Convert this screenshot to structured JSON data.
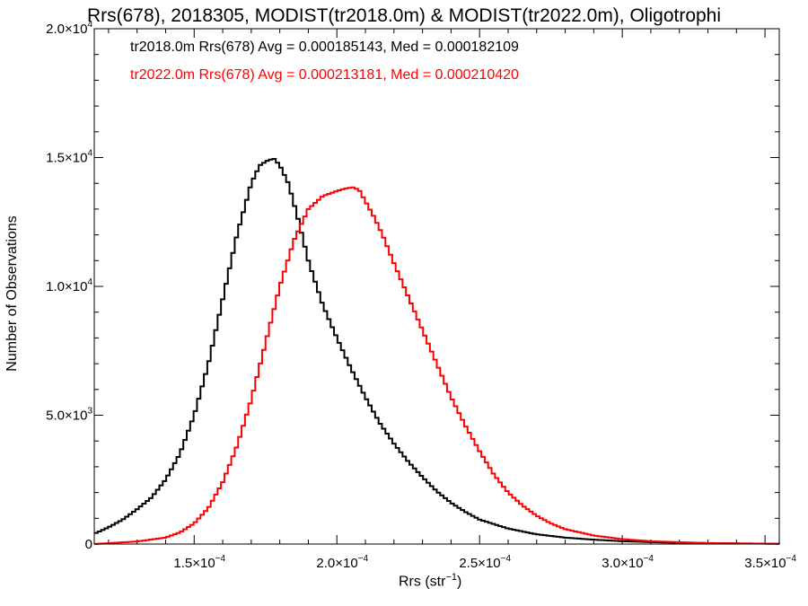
{
  "chart_data": {
    "type": "line",
    "title": "Rrs(678), 2018305, MODIST(tr2018.0m) & MODIST(tr2022.0m), Oligotrophi",
    "xlabel_base": "Rrs (str",
    "xlabel_sup": "−1",
    "xlabel_close": ")",
    "ylabel": "Number of Observations",
    "xlim": [
      0.000115,
      0.000355
    ],
    "ylim": [
      0,
      20000
    ],
    "x_ticks": [
      {
        "value": 0.00015,
        "mant": "1.5×10",
        "exp": "−4"
      },
      {
        "value": 0.0002,
        "mant": "2.0×10",
        "exp": "−4"
      },
      {
        "value": 0.00025,
        "mant": "2.5×10",
        "exp": "−4"
      },
      {
        "value": 0.0003,
        "mant": "3.0×10",
        "exp": "−4"
      },
      {
        "value": 0.00035,
        "mant": "3.5×10",
        "exp": "−4"
      }
    ],
    "y_ticks": [
      {
        "value": 0,
        "mant": "0",
        "exp": ""
      },
      {
        "value": 5000,
        "mant": "5.0×10",
        "exp": "3"
      },
      {
        "value": 10000,
        "mant": "1.0×10",
        "exp": "4"
      },
      {
        "value": 15000,
        "mant": "1.5×10",
        "exp": "4"
      },
      {
        "value": 20000,
        "mant": "2.0×10",
        "exp": "4"
      }
    ],
    "legend": [
      {
        "text": "tr2018.0m Rrs(678) Avg = 0.000185143, Med = 0.000182109",
        "color": "#000000"
      },
      {
        "text": "tr2022.0m Rrs(678) Avg = 0.000213181, Med = 0.000210420",
        "color": "#ff0000"
      }
    ],
    "series": [
      {
        "color": "#000000",
        "x": [
          0.000115,
          0.00012,
          0.000125,
          0.00013,
          0.000135,
          0.00014,
          0.000145,
          0.00015,
          0.000155,
          0.00016,
          0.000165,
          0.00017,
          0.000173,
          0.000176,
          0.000178,
          0.00018,
          0.000183,
          0.000186,
          0.00019,
          0.000195,
          0.0002,
          0.000205,
          0.00021,
          0.000215,
          0.00022,
          0.000225,
          0.00023,
          0.000235,
          0.00024,
          0.000245,
          0.00025,
          0.00026,
          0.00027,
          0.00028,
          0.00029,
          0.0003,
          0.00031,
          0.00032,
          0.00033,
          0.00034,
          0.00035,
          0.000355
        ],
        "values": [
          400,
          650,
          950,
          1350,
          1800,
          2500,
          3500,
          5000,
          7000,
          9500,
          12000,
          14000,
          14700,
          14900,
          14950,
          14700,
          14000,
          12800,
          11000,
          9300,
          8000,
          6800,
          5700,
          4700,
          3900,
          3200,
          2600,
          2050,
          1600,
          1250,
          950,
          600,
          380,
          250,
          170,
          110,
          75,
          50,
          35,
          25,
          15,
          10
        ]
      },
      {
        "color": "#ff0000",
        "x": [
          0.000115,
          0.00013,
          0.00014,
          0.000145,
          0.00015,
          0.000155,
          0.00016,
          0.000165,
          0.00017,
          0.000175,
          0.00018,
          0.000185,
          0.00019,
          0.000195,
          0.0002,
          0.000203,
          0.000206,
          0.000208,
          0.00021,
          0.000213,
          0.000216,
          0.00022,
          0.000225,
          0.00023,
          0.000235,
          0.00024,
          0.000245,
          0.00025,
          0.000255,
          0.00026,
          0.000265,
          0.00027,
          0.000275,
          0.00028,
          0.00029,
          0.0003,
          0.00031,
          0.00032,
          0.00033,
          0.00034,
          0.000355
        ],
        "values": [
          0,
          100,
          250,
          450,
          800,
          1400,
          2400,
          3800,
          5600,
          7800,
          10000,
          11800,
          13000,
          13500,
          13700,
          13800,
          13850,
          13700,
          13300,
          12700,
          12000,
          10900,
          9600,
          8300,
          7000,
          5700,
          4600,
          3600,
          2700,
          2000,
          1500,
          1100,
          800,
          580,
          330,
          190,
          110,
          70,
          40,
          25,
          10
        ]
      }
    ]
  }
}
